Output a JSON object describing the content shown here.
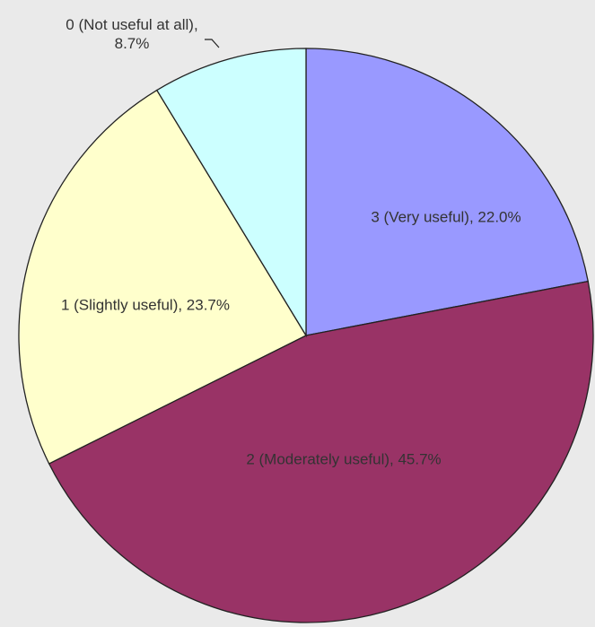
{
  "chart_data": {
    "type": "pie",
    "values": [
      22.0,
      45.7,
      23.7,
      8.7
    ],
    "value_labels": [
      "3 (Very useful), 22.0%",
      "2 (Moderately useful), 45.7%",
      "1 (Slightly useful), 23.7%",
      "0 (Not useful at all), 8.7%"
    ],
    "colors": [
      "#9999ff",
      "#993366",
      "#ffffcc",
      "#ccffff"
    ]
  }
}
